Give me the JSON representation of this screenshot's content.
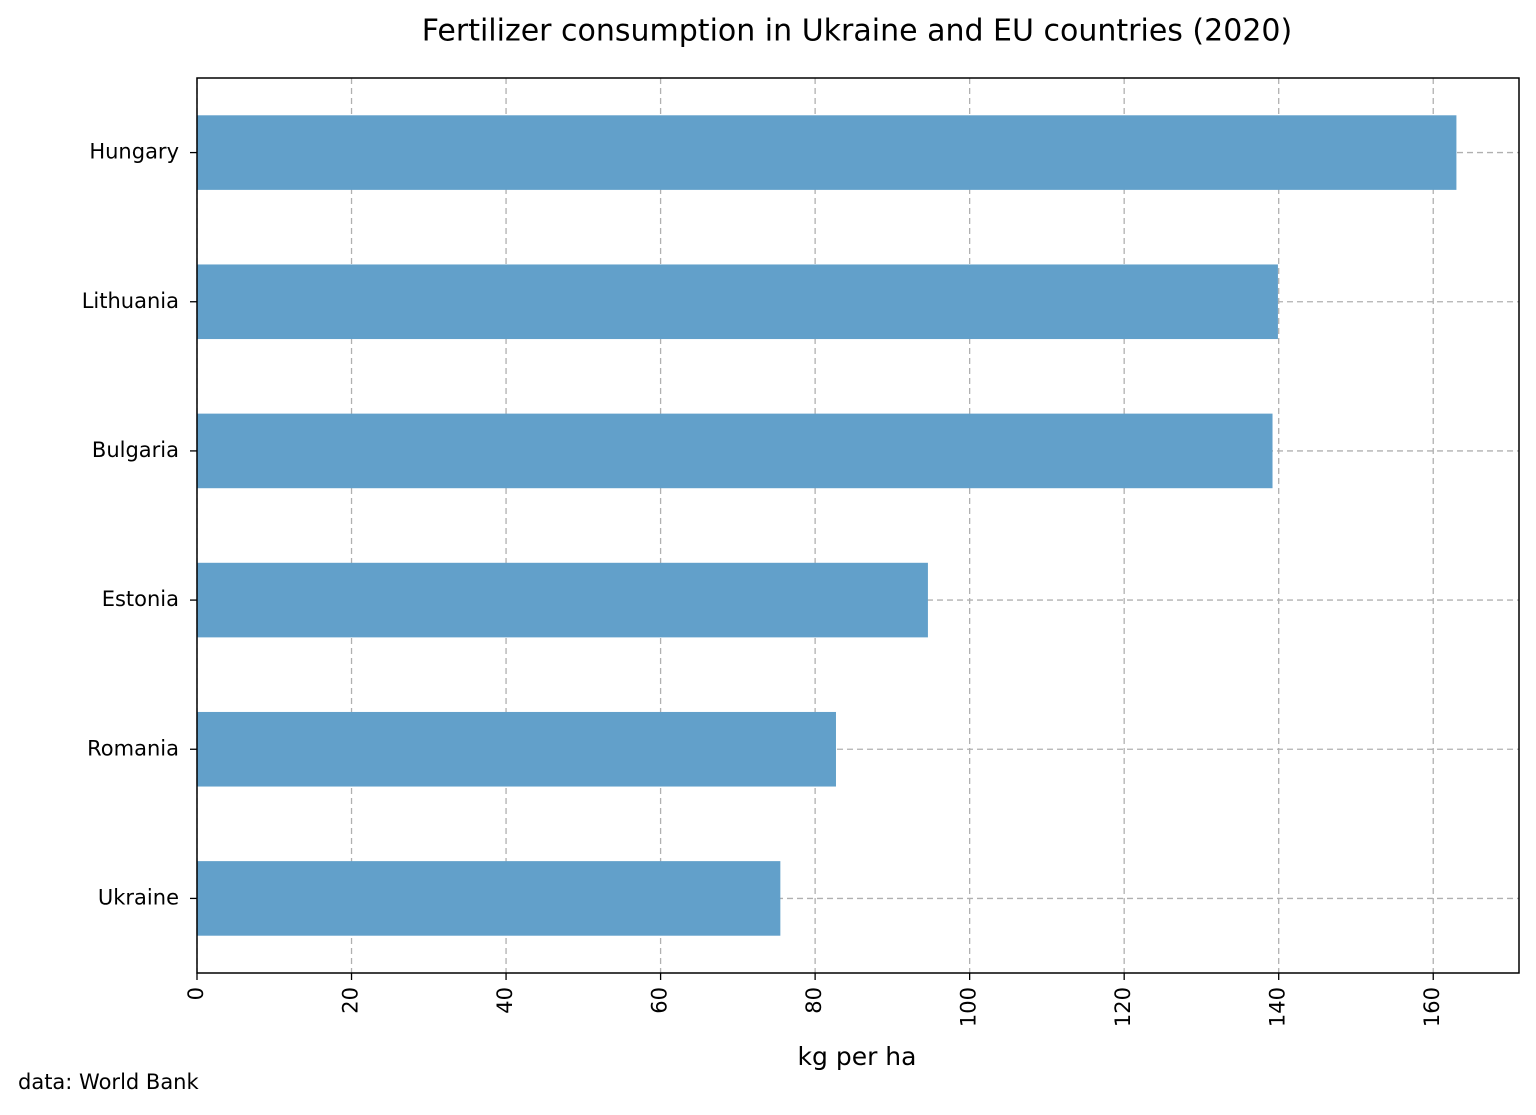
{
  "chart_data": {
    "type": "barh",
    "title": "Fertilizer consumption in Ukraine and EU countries (2020)",
    "x_label": "kg per ha",
    "source": "data: World Bank",
    "categories": [
      "Hungary",
      "Lithuania",
      "Bulgaria",
      "Estonia",
      "Romania",
      "Ukraine"
    ],
    "values": [
      163.0,
      139.9,
      139.2,
      94.6,
      82.7,
      75.5
    ],
    "color": "#62a0ca",
    "xlim": [
      0,
      171.1
    ],
    "xticks": [
      0,
      20,
      40,
      60,
      80,
      100,
      120,
      140,
      160
    ],
    "grid": true
  }
}
